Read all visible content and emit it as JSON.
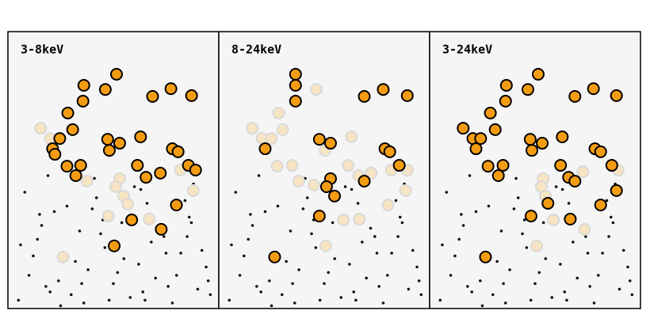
{
  "chart_data": [
    {
      "type": "scatter",
      "title": "3-8keV",
      "xlim": [
        0,
        100
      ],
      "ylim": [
        0,
        100
      ],
      "series": [
        {
          "color": "#111111",
          "marker_size": 1.8,
          "x": [
            5,
            10,
            14,
            18,
            22,
            26,
            30,
            34,
            38,
            42,
            46,
            50,
            54,
            58,
            62,
            66,
            70,
            74,
            78,
            82,
            86,
            90,
            94,
            8,
            12,
            20,
            28,
            36,
            44,
            52,
            60,
            68,
            76,
            84,
            92,
            16,
            24,
            32,
            40,
            48,
            56,
            64,
            72,
            80,
            88,
            96,
            6,
            15,
            25,
            35,
            45,
            55,
            65,
            75,
            85,
            95,
            19,
            41,
            63,
            87
          ],
          "values": [
            3,
            12,
            25,
            8,
            35,
            18,
            5,
            28,
            14,
            40,
            22,
            9,
            31,
            4,
            16,
            38,
            11,
            26,
            2,
            20,
            33,
            7,
            15,
            42,
            19,
            6,
            37,
            2,
            27,
            13,
            44,
            24,
            8,
            39,
            21,
            30,
            10,
            17,
            36,
            3,
            41,
            6,
            29,
            12,
            45,
            5,
            23,
            34,
            1,
            9,
            32,
            18,
            3,
            20,
            26,
            10,
            48,
            47,
            43,
            31
          ]
        },
        {
          "color": "#f7e4c2",
          "edgecolor": "#d9d9d9",
          "marker_size": 7,
          "x": [
            15.5,
            20.1,
            37.5,
            53.0,
            51.1,
            54.9,
            56.8,
            87.9,
            67.0,
            47.7,
            26.1,
            81.8
          ],
          "values": [
            65.1,
            61.4,
            46.0,
            46.9,
            44.0,
            40.6,
            37.7,
            42.6,
            32.3,
            33.4,
            18.6,
            50.0
          ]
        },
        {
          "color": "#f39c12",
          "edgecolor": "#000000",
          "marker_size": 7,
          "x": [
            51.5,
            36.0,
            46.2,
            77.3,
            68.6,
            87.1,
            35.6,
            28.4,
            30.7,
            24.6,
            47.3,
            53.0,
            62.9,
            21.2,
            22.3,
            48.1,
            78.0,
            80.7,
            61.4,
            85.6,
            89.0,
            28.0,
            34.5,
            32.2,
            65.5,
            72.3,
            79.9,
            58.7,
            72.7,
            50.4
          ],
          "values": [
            84.6,
            80.6,
            79.1,
            79.4,
            76.6,
            76.9,
            74.9,
            70.6,
            64.6,
            61.4,
            61.1,
            59.7,
            62.0,
            57.7,
            55.7,
            57.1,
            57.7,
            56.6,
            51.7,
            51.7,
            50.0,
            51.4,
            51.7,
            48.0,
            47.4,
            48.9,
            37.4,
            32.0,
            28.6,
            22.6
          ]
        }
      ]
    },
    {
      "type": "scatter",
      "title": "8-24keV",
      "xlim": [
        0,
        100
      ],
      "ylim": [
        0,
        100
      ],
      "series": [
        {
          "color": "#111111",
          "marker_size": 1.8,
          "x": [
            5,
            10,
            14,
            18,
            22,
            26,
            30,
            34,
            38,
            42,
            46,
            50,
            54,
            58,
            62,
            66,
            70,
            74,
            78,
            82,
            86,
            90,
            94,
            8,
            12,
            20,
            28,
            36,
            44,
            52,
            60,
            68,
            76,
            84,
            92,
            16,
            24,
            32,
            40,
            48,
            56,
            64,
            72,
            80,
            88,
            96,
            6,
            15,
            25,
            35,
            45,
            55,
            65,
            75,
            85,
            95,
            19,
            41,
            63,
            87
          ],
          "values": [
            3,
            12,
            25,
            8,
            35,
            18,
            5,
            28,
            14,
            40,
            22,
            9,
            31,
            4,
            16,
            38,
            11,
            26,
            2,
            20,
            33,
            7,
            15,
            42,
            19,
            6,
            37,
            2,
            27,
            13,
            44,
            24,
            8,
            39,
            21,
            30,
            10,
            17,
            36,
            3,
            41,
            6,
            29,
            12,
            45,
            5,
            23,
            34,
            1,
            9,
            32,
            18,
            3,
            20,
            26,
            10,
            48,
            47,
            43,
            31
          ]
        },
        {
          "color": "#f7e4c2",
          "edgecolor": "#d9d9d9",
          "marker_size": 7,
          "x": [
            15.9,
            20.5,
            25.0,
            28.4,
            30.3,
            46.2,
            50.4,
            62.9,
            61.4,
            27.7,
            34.8,
            37.9,
            66.3,
            72.3,
            81.8,
            89.4,
            88.6,
            80.3,
            66.7,
            59.1,
            50.8,
            45.1
          ],
          "values": [
            65.1,
            61.4,
            61.4,
            70.6,
            64.6,
            79.1,
            57.1,
            62.0,
            51.7,
            51.4,
            51.7,
            46.0,
            48.0,
            48.9,
            50.0,
            50.0,
            42.6,
            37.4,
            32.3,
            32.0,
            22.6,
            44.6
          ]
        },
        {
          "color": "#f39c12",
          "edgecolor": "#000000",
          "marker_size": 7,
          "x": [
            36.4,
            36.4,
            36.4,
            69.0,
            78.0,
            89.4,
            22.0,
            47.7,
            53.0,
            78.8,
            81.1,
            85.6,
            53.0,
            51.1,
            54.9,
            69.0,
            47.7,
            26.5
          ],
          "values": [
            84.6,
            80.6,
            74.9,
            76.6,
            79.1,
            76.9,
            57.7,
            61.1,
            59.7,
            57.7,
            56.6,
            51.7,
            46.9,
            44.0,
            40.6,
            46.0,
            33.4,
            18.6
          ]
        }
      ]
    },
    {
      "type": "scatter",
      "title": "3-24keV",
      "xlim": [
        0,
        100
      ],
      "ylim": [
        0,
        100
      ],
      "series": [
        {
          "color": "#111111",
          "marker_size": 1.8,
          "x": [
            5,
            10,
            14,
            18,
            22,
            26,
            30,
            34,
            38,
            42,
            46,
            50,
            54,
            58,
            62,
            66,
            70,
            74,
            78,
            82,
            86,
            90,
            94,
            8,
            12,
            20,
            28,
            36,
            44,
            52,
            60,
            68,
            76,
            84,
            92,
            16,
            24,
            32,
            40,
            48,
            56,
            64,
            72,
            80,
            88,
            96,
            6,
            15,
            25,
            35,
            45,
            55,
            65,
            75,
            85,
            95,
            19,
            41,
            63,
            87
          ],
          "values": [
            3,
            12,
            25,
            8,
            35,
            18,
            5,
            28,
            14,
            40,
            22,
            9,
            31,
            4,
            16,
            38,
            11,
            26,
            2,
            20,
            33,
            7,
            15,
            42,
            19,
            6,
            37,
            2,
            27,
            13,
            44,
            24,
            8,
            39,
            21,
            30,
            10,
            17,
            36,
            3,
            41,
            6,
            29,
            12,
            45,
            5,
            23,
            34,
            1,
            9,
            32,
            18,
            3,
            20,
            26,
            10,
            48,
            47,
            43,
            31
          ]
        },
        {
          "color": "#f7e4c2",
          "edgecolor": "#d9d9d9",
          "marker_size": 7,
          "x": [
            89.4,
            53.8,
            53.0,
            54.9,
            72.7,
            73.5,
            50.8,
            58.7
          ],
          "values": [
            50.0,
            46.9,
            44.0,
            40.6,
            49.4,
            28.6,
            22.6,
            32.0
          ]
        },
        {
          "color": "#f39c12",
          "edgecolor": "#000000",
          "marker_size": 7,
          "x": [
            51.5,
            36.4,
            46.6,
            77.7,
            68.9,
            88.6,
            36.0,
            28.8,
            31.1,
            15.9,
            20.5,
            24.2,
            47.7,
            53.4,
            62.9,
            22.0,
            48.5,
            78.4,
            81.1,
            62.1,
            86.4,
            27.7,
            34.8,
            32.6,
            65.9,
            68.9,
            81.1,
            56.1,
            48.1,
            66.7,
            26.5,
            88.6
          ],
          "values": [
            84.6,
            80.6,
            79.1,
            79.4,
            76.6,
            76.9,
            74.9,
            70.6,
            64.6,
            65.1,
            61.4,
            61.4,
            61.1,
            59.7,
            62.0,
            57.7,
            57.1,
            57.7,
            56.6,
            51.7,
            51.7,
            51.4,
            51.7,
            48.0,
            47.4,
            46.0,
            37.4,
            38.0,
            33.4,
            32.3,
            18.6,
            42.6
          ]
        }
      ]
    }
  ]
}
